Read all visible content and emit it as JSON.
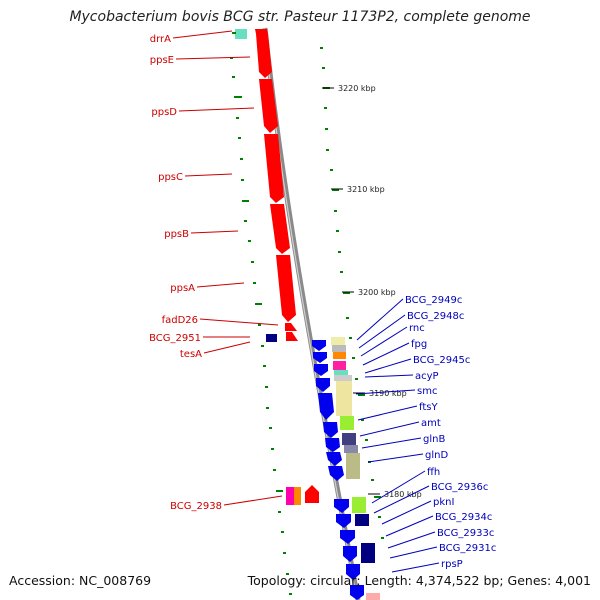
{
  "title": "Mycobacterium bovis BCG str. Pasteur 1173P2, complete genome",
  "accession": "Accession: NC_008769",
  "topology": "Topology: circular; Length: 4,374,522 bp; Genes: 4,001",
  "colors": {
    "forward_label": "#cc0000",
    "reverse_label": "#0000bb",
    "forward_cds": "#ff0000",
    "reverse_cds": "#0000ee",
    "backbone": "#888888",
    "gc_tick": "#008000"
  },
  "kbp_ticks": [
    "3220 kbp",
    "3210 kbp",
    "3200 kbp",
    "3190 kbp",
    "3180 kbp"
  ],
  "forward_genes": [
    "drrA",
    "ppsE",
    "ppsD",
    "ppsC",
    "ppsB",
    "ppsA",
    "fadD26",
    "BCG_2951",
    "tesA",
    "BCG_2938"
  ],
  "reverse_genes": [
    "BCG_2949c",
    "BCG_2948c",
    "rnc",
    "fpg",
    "BCG_2945c",
    "acyP",
    "smc",
    "ftsY",
    "amt",
    "glnB",
    "glnD",
    "ffh",
    "BCG_2936c",
    "pknI",
    "BCG_2934c",
    "BCG_2933c",
    "BCG_2931c",
    "rpsP"
  ]
}
